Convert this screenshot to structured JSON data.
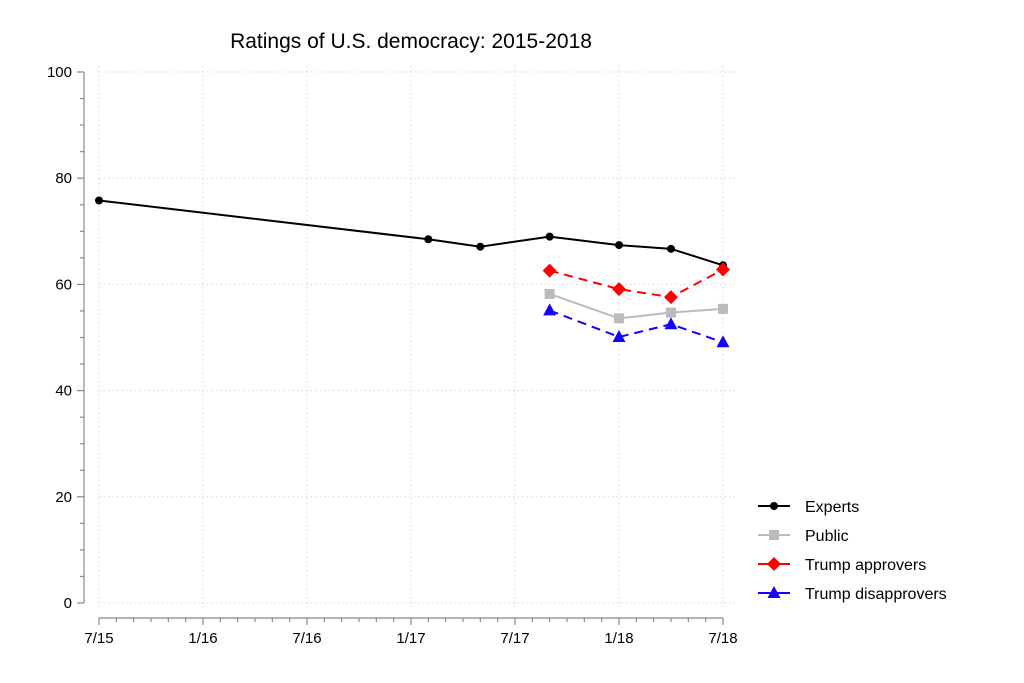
{
  "chart_data": {
    "type": "line",
    "title": "Ratings of U.S. democracy: 2015-2018",
    "xlabel": "",
    "ylabel": "",
    "ylim": [
      0,
      100
    ],
    "yticks": [
      0,
      20,
      40,
      60,
      80,
      100
    ],
    "xlim": [
      "2015-07",
      "2018-07"
    ],
    "xticks": [
      {
        "date": "2015-07",
        "label": "7/15"
      },
      {
        "date": "2016-01",
        "label": "1/16"
      },
      {
        "date": "2016-07",
        "label": "7/16"
      },
      {
        "date": "2017-01",
        "label": "1/17"
      },
      {
        "date": "2017-07",
        "label": "7/17"
      },
      {
        "date": "2018-01",
        "label": "1/18"
      },
      {
        "date": "2018-07",
        "label": "7/18"
      }
    ],
    "grid": true,
    "legend_position": "bottom-right",
    "series": [
      {
        "name": "Experts",
        "color": "#000000",
        "marker": "circle",
        "dash": "solid",
        "points": [
          {
            "x": "2015-07",
            "y": 75.8
          },
          {
            "x": "2017-02",
            "y": 68.5
          },
          {
            "x": "2017-05",
            "y": 67.1
          },
          {
            "x": "2017-09",
            "y": 69.0
          },
          {
            "x": "2018-01",
            "y": 67.4
          },
          {
            "x": "2018-04",
            "y": 66.7
          },
          {
            "x": "2018-07",
            "y": 63.6
          }
        ]
      },
      {
        "name": "Public",
        "color": "#bbbbbb",
        "marker": "square",
        "dash": "solid",
        "points": [
          {
            "x": "2017-09",
            "y": 58.2
          },
          {
            "x": "2018-01",
            "y": 53.6
          },
          {
            "x": "2018-04",
            "y": 54.7
          },
          {
            "x": "2018-07",
            "y": 55.4
          }
        ]
      },
      {
        "name": "Trump approvers",
        "color": "#ff0000",
        "marker": "diamond",
        "dash": "dashed",
        "points": [
          {
            "x": "2017-09",
            "y": 62.6
          },
          {
            "x": "2018-01",
            "y": 59.1
          },
          {
            "x": "2018-04",
            "y": 57.6
          },
          {
            "x": "2018-07",
            "y": 62.8
          }
        ]
      },
      {
        "name": "Trump disapprovers",
        "color": "#1400ff",
        "marker": "triangle",
        "dash": "dashed",
        "points": [
          {
            "x": "2017-09",
            "y": 55.1
          },
          {
            "x": "2018-01",
            "y": 50.1
          },
          {
            "x": "2018-04",
            "y": 52.5
          },
          {
            "x": "2018-07",
            "y": 49.1
          }
        ]
      }
    ]
  }
}
